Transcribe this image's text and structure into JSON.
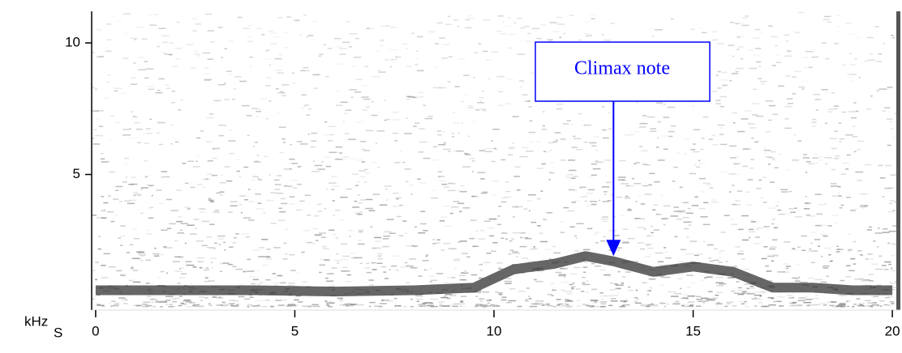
{
  "chart_data": {
    "type": "spectrogram",
    "xlabel": "S",
    "ylabel": "kHz",
    "xlim": [
      -0.1,
      20.1
    ],
    "ylim": [
      0,
      11.2
    ],
    "xticks": [
      0,
      5,
      10,
      15,
      20
    ],
    "yticks": [
      5,
      10
    ],
    "trace": {
      "x": [
        0,
        2,
        4,
        6,
        8,
        9.5,
        10.5,
        11.5,
        12.3,
        13,
        14,
        15,
        16,
        17,
        18,
        19,
        20
      ],
      "values": [
        0.6,
        0.6,
        0.6,
        0.55,
        0.6,
        0.7,
        1.4,
        1.6,
        1.9,
        1.7,
        1.3,
        1.5,
        1.3,
        0.7,
        0.7,
        0.6,
        0.6
      ],
      "color": "#333333"
    },
    "annotation": {
      "text": "Climax note",
      "x": 13,
      "y": 1.9,
      "color": "#0000ff"
    }
  }
}
